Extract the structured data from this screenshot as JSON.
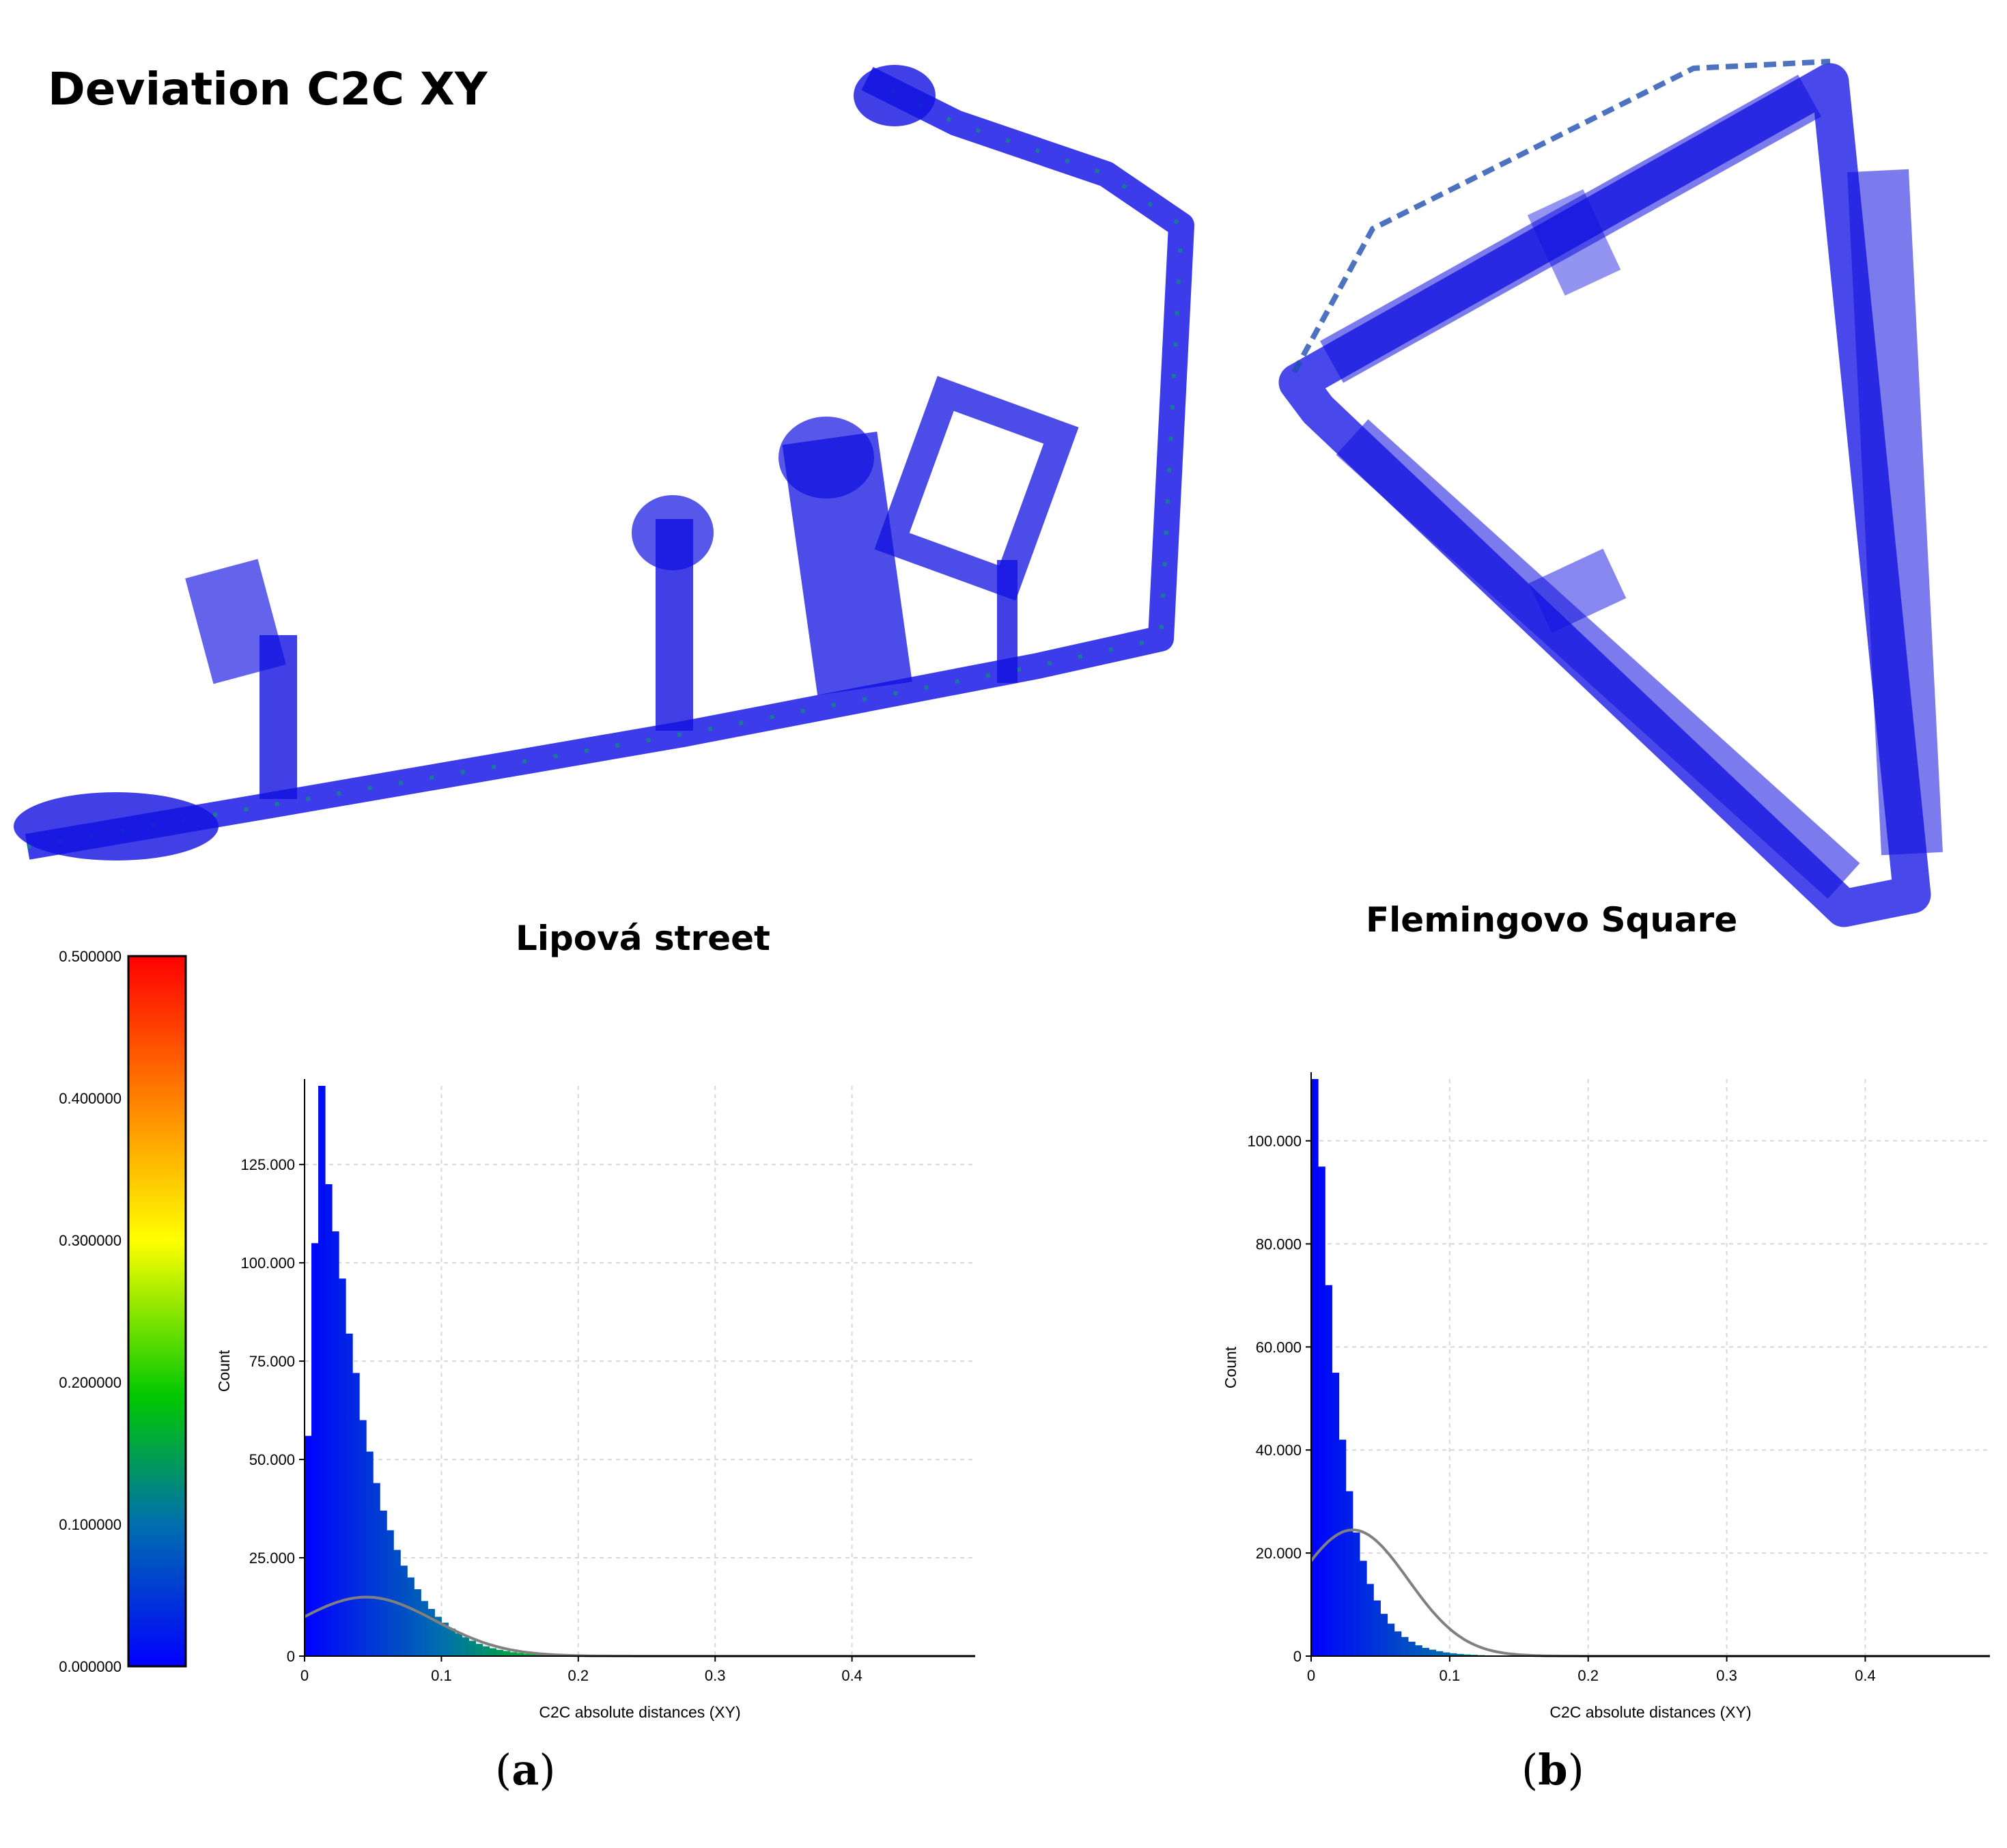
{
  "figure": {
    "title": "Deviation C2C XY",
    "sites": {
      "left": "Lipová street",
      "right": "Flemingovo Square"
    },
    "panel_labels": {
      "a": "a",
      "b": "b"
    }
  },
  "colors": {
    "low": "#0000ff",
    "mid_low": "#00c800",
    "mid": "#ffff00",
    "high": "#ff0000",
    "fit_curve": "#808080",
    "grid": "#d8d8d8"
  },
  "colorbar": {
    "ticks": [
      "0.500000",
      "0.400000",
      "0.300000",
      "0.200000",
      "0.100000",
      "0.000000"
    ],
    "min": 0,
    "max": 0.5
  },
  "chart_data": [
    {
      "type": "bar",
      "panel": "a",
      "xlabel": "C2C absolute distances (XY)",
      "ylabel": "Count",
      "xlim": [
        0,
        0.49
      ],
      "ylim": [
        0,
        145000
      ],
      "xticks": [
        "0",
        "0.1",
        "0.2",
        "0.3",
        "0.4"
      ],
      "yticks": [
        "0",
        "25.000",
        "50.000",
        "75.000",
        "100.000",
        "125.000"
      ],
      "ytick_values": [
        0,
        25000,
        50000,
        75000,
        100000,
        125000
      ],
      "xtick_values": [
        0,
        0.1,
        0.2,
        0.3,
        0.4
      ],
      "histogram": {
        "bin_width": 0.005,
        "bin_start": 0,
        "counts": [
          56000,
          105000,
          145000,
          120000,
          108000,
          96000,
          82000,
          72000,
          60000,
          52000,
          44000,
          37000,
          32000,
          27000,
          23000,
          20000,
          17000,
          14000,
          12000,
          10000,
          8500,
          7000,
          5800,
          4800,
          3900,
          3100,
          2500,
          2000,
          1600,
          1300,
          1000,
          800,
          600,
          450,
          350,
          250,
          180,
          120,
          80,
          50,
          30,
          20,
          10
        ]
      },
      "fit_curve": {
        "type": "normal",
        "mean": 0.045,
        "std": 0.05,
        "peak": 15000
      }
    },
    {
      "type": "bar",
      "panel": "b",
      "xlabel": "C2C absolute distances (XY)",
      "ylabel": "Count",
      "xlim": [
        0,
        0.49
      ],
      "ylim": [
        0,
        112000
      ],
      "xticks": [
        "0",
        "0.1",
        "0.2",
        "0.3",
        "0.4"
      ],
      "yticks": [
        "0",
        "20.000",
        "40.000",
        "60.000",
        "80.000",
        "100.000"
      ],
      "ytick_values": [
        0,
        20000,
        40000,
        60000,
        80000,
        100000
      ],
      "xtick_values": [
        0,
        0.1,
        0.2,
        0.3,
        0.4
      ],
      "histogram": {
        "bin_width": 0.005,
        "bin_start": 0,
        "counts": [
          112000,
          95000,
          72000,
          55000,
          42000,
          32000,
          24000,
          18500,
          14000,
          10800,
          8200,
          6300,
          4800,
          3700,
          2800,
          2100,
          1600,
          1250,
          950,
          720,
          550,
          420,
          320,
          250,
          190,
          140,
          100,
          75,
          55,
          40,
          30,
          22,
          15,
          10,
          6,
          4
        ]
      },
      "fit_curve": {
        "type": "normal",
        "mean": 0.03,
        "std": 0.04,
        "peak": 24500
      }
    }
  ]
}
